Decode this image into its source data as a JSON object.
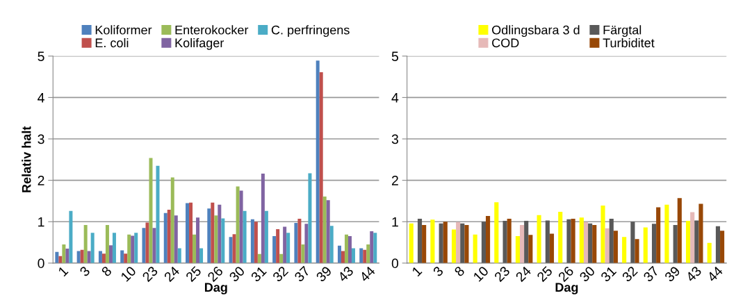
{
  "chart_data": [
    {
      "type": "bar",
      "xlabel": "Dag",
      "ylabel": "Relativ halt",
      "ylim": [
        0,
        5
      ],
      "yticks": [
        0,
        1,
        2,
        3,
        4,
        5
      ],
      "grid": "y",
      "legend": "top",
      "categories": [
        "1",
        "3",
        "8",
        "10",
        "23",
        "24",
        "25",
        "26",
        "30",
        "31",
        "32",
        "37",
        "39",
        "43",
        "44"
      ],
      "series": [
        {
          "name": "Koliformer",
          "color": "#4f81bd",
          "values": [
            0.27,
            0.29,
            0.29,
            0.31,
            0.85,
            1.21,
            1.45,
            1.32,
            0.63,
            1.06,
            0.65,
            0.97,
            4.89,
            0.42,
            0.36
          ]
        },
        {
          "name": "E. coli",
          "color": "#c0504d",
          "values": [
            0.17,
            0.32,
            0.23,
            0.23,
            0.98,
            1.29,
            1.46,
            1.46,
            0.7,
            1.0,
            0.82,
            1.07,
            4.61,
            0.29,
            0.32
          ]
        },
        {
          "name": "Enterokocker",
          "color": "#9bbb59",
          "values": [
            0.45,
            0.92,
            0.92,
            0.69,
            2.54,
            2.07,
            0.69,
            1.15,
            1.85,
            0.22,
            0.22,
            0.45,
            1.61,
            0.69,
            0.45
          ]
        },
        {
          "name": "Kolifager",
          "color": "#8064a2",
          "values": [
            0.35,
            0.29,
            0.43,
            0.66,
            0.85,
            1.15,
            1.1,
            1.41,
            1.75,
            2.16,
            0.88,
            0.95,
            1.52,
            0.65,
            0.77
          ]
        },
        {
          "name": "C. perfringens",
          "color": "#4bacc6",
          "values": [
            1.26,
            0.73,
            0.73,
            0.73,
            2.35,
            0.36,
            0.36,
            1.08,
            1.26,
            1.26,
            0.73,
            2.17,
            0.9,
            0.36,
            0.73
          ]
        }
      ]
    },
    {
      "type": "bar",
      "xlabel": "Dag",
      "ylim": [
        0,
        5
      ],
      "yticks": [
        0,
        1,
        2,
        3,
        4,
        5
      ],
      "grid": "y",
      "legend": "top",
      "categories": [
        "1",
        "3",
        "8",
        "10",
        "23",
        "24",
        "25",
        "26",
        "30",
        "31",
        "32",
        "37",
        "39",
        "43",
        "44"
      ],
      "series": [
        {
          "name": "Odlingsbara 3 d",
          "color": "#ffff00",
          "values": [
            0.96,
            1.05,
            0.81,
            0.69,
            1.47,
            0.65,
            1.16,
            1.24,
            1.1,
            1.39,
            0.63,
            0.86,
            1.41,
            1.02,
            0.49
          ]
        },
        {
          "name": "COD",
          "color": "#e6b9b8",
          "values": [
            null,
            null,
            0.99,
            null,
            null,
            0.92,
            null,
            null,
            0.99,
            0.84,
            null,
            null,
            null,
            1.23,
            null
          ]
        },
        {
          "name": "Färgtal",
          "color": "#595959",
          "values": [
            1.07,
            0.96,
            0.96,
            1.0,
            1.02,
            1.02,
            1.03,
            1.06,
            0.96,
            1.07,
            1.0,
            0.95,
            0.92,
            1.03,
            0.89
          ]
        },
        {
          "name": "Turbiditet",
          "color": "#984807",
          "values": [
            0.92,
            1.0,
            0.92,
            1.14,
            1.07,
            0.68,
            0.71,
            1.07,
            0.92,
            0.78,
            0.58,
            1.35,
            1.57,
            1.43,
            0.78
          ]
        }
      ]
    }
  ]
}
